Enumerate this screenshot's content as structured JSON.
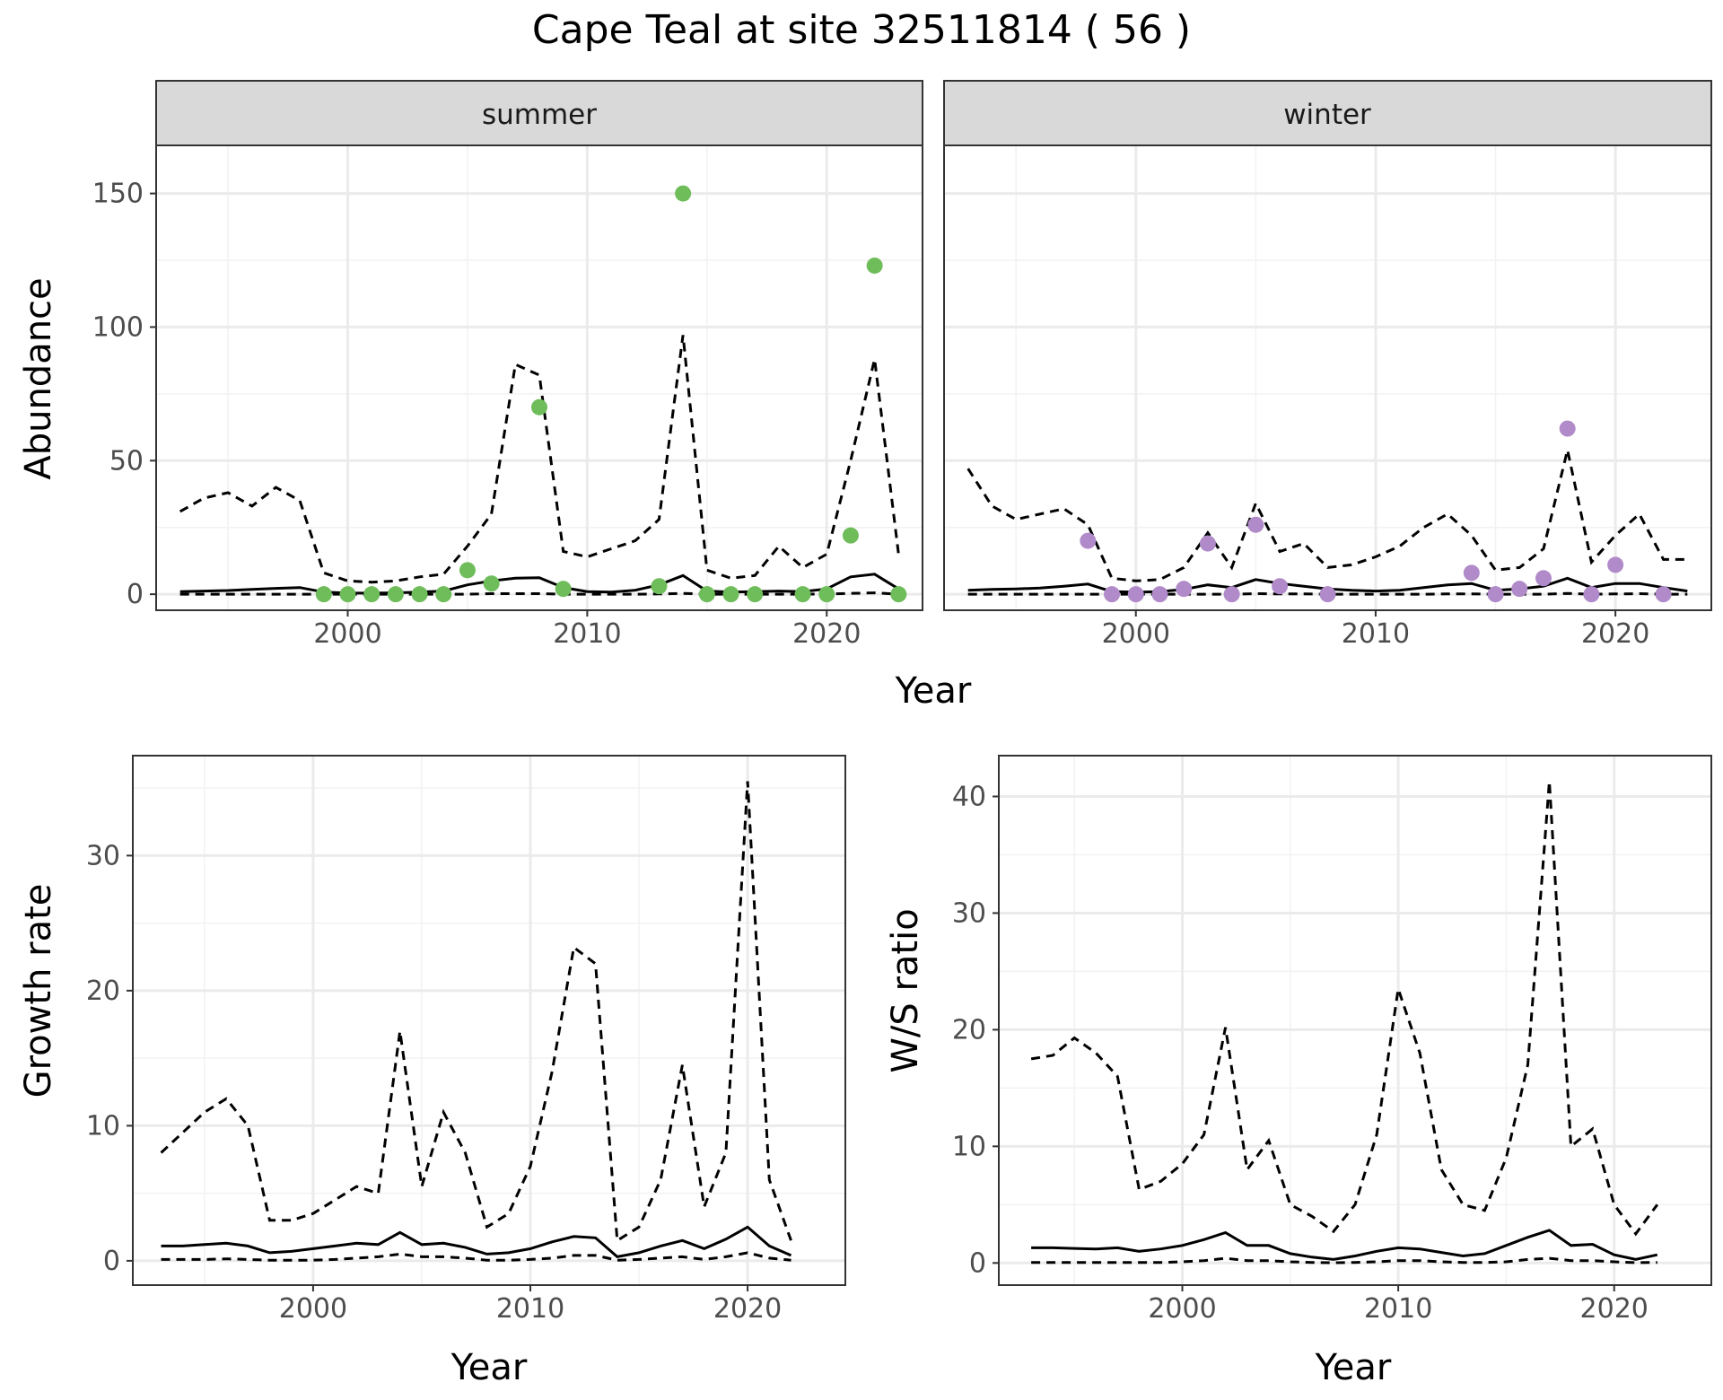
{
  "title": "Cape Teal at site 32511814 ( 56 )",
  "chart_data": [
    {
      "type": "line",
      "panel": "abundance",
      "facets": [
        "summer",
        "winter"
      ],
      "xlabel": "Year",
      "ylabel": "Abundance",
      "xlim": [
        1992,
        2024
      ],
      "ylim": [
        -6,
        168
      ],
      "xticks": [
        2000,
        2010,
        2020
      ],
      "yticks": [
        0,
        50,
        100,
        150
      ],
      "minor_xticks": [
        1995,
        2005,
        2015
      ],
      "minor_yticks": [
        25,
        75,
        125
      ],
      "grid": true,
      "colors": {
        "summer": "#6ebd5a",
        "winter": "#b08ac9",
        "line": "#000000",
        "strip_bg": "#d9d9d9"
      },
      "summer": {
        "points": {
          "x": [
            1999,
            2000,
            2001,
            2002,
            2003,
            2004,
            2005,
            2006,
            2008,
            2009,
            2013,
            2014,
            2015,
            2016,
            2017,
            2019,
            2020,
            2021,
            2022,
            2023
          ],
          "y": [
            0,
            0,
            0,
            0,
            0,
            0,
            9,
            4,
            70,
            2,
            3,
            150,
            0,
            0,
            0,
            0,
            0,
            22,
            123,
            0
          ]
        },
        "x": [
          1993,
          1994,
          1995,
          1996,
          1997,
          1998,
          1999,
          2000,
          2001,
          2002,
          2003,
          2004,
          2005,
          2006,
          2007,
          2008,
          2009,
          2010,
          2011,
          2012,
          2013,
          2014,
          2015,
          2016,
          2017,
          2018,
          2019,
          2020,
          2021,
          2022,
          2023
        ],
        "median": [
          1,
          1.2,
          1.4,
          1.8,
          2.2,
          2.5,
          0.8,
          0.4,
          0.4,
          0.5,
          0.8,
          1.2,
          3.5,
          5,
          6,
          6.2,
          2.5,
          1,
          0.8,
          1.5,
          3.5,
          7,
          1.2,
          0.8,
          1,
          1.2,
          1,
          2,
          6.5,
          7.5,
          2
        ],
        "upper": [
          31,
          36,
          38,
          33,
          40,
          35,
          8,
          5,
          4.5,
          5,
          6.5,
          7.5,
          18,
          30,
          86,
          82,
          16,
          14,
          17,
          20,
          28,
          97,
          9,
          6,
          7,
          18,
          10,
          15,
          50,
          88,
          15
        ],
        "lower": [
          0,
          0,
          0,
          0,
          0,
          0,
          0,
          0,
          0,
          0,
          0,
          0,
          0,
          0.2,
          0.2,
          0.2,
          0,
          0,
          0,
          0,
          0.1,
          0.3,
          0,
          0,
          0,
          0,
          0,
          0.1,
          0.3,
          0.5,
          0
        ]
      },
      "winter": {
        "points": {
          "x": [
            1998,
            1999,
            2000,
            2001,
            2002,
            2003,
            2004,
            2005,
            2006,
            2008,
            2014,
            2015,
            2016,
            2017,
            2018,
            2019,
            2020,
            2022
          ],
          "y": [
            20,
            0,
            0,
            0,
            2,
            19,
            0,
            26,
            3,
            0,
            8,
            0,
            2,
            6,
            62,
            0,
            11,
            0
          ]
        },
        "x": [
          1993,
          1994,
          1995,
          1996,
          1997,
          1998,
          1999,
          2000,
          2001,
          2002,
          2003,
          2004,
          2005,
          2006,
          2007,
          2008,
          2009,
          2010,
          2011,
          2012,
          2013,
          2014,
          2015,
          2016,
          2017,
          2018,
          2019,
          2020,
          2021,
          2022,
          2023
        ],
        "median": [
          1.5,
          1.8,
          2,
          2.3,
          3,
          3.8,
          1,
          0.8,
          1,
          1.8,
          3.5,
          2.5,
          5.5,
          4,
          3,
          2,
          1.5,
          1.2,
          1.5,
          2.5,
          3.5,
          4,
          1.5,
          2,
          3,
          6,
          2.5,
          4,
          4,
          2.5,
          1.2
        ],
        "upper": [
          47,
          33,
          28,
          30,
          32,
          26,
          6,
          5,
          5.5,
          10,
          23,
          10,
          34,
          16,
          19,
          10,
          11,
          14,
          18,
          25,
          30,
          22,
          9,
          10,
          17,
          54,
          12,
          22,
          30,
          13,
          13
        ],
        "lower": [
          0,
          0,
          0,
          0,
          0,
          0,
          0,
          0,
          0,
          0,
          0,
          0,
          0.2,
          0.1,
          0.1,
          0,
          0,
          0,
          0,
          0,
          0.1,
          0.1,
          0,
          0,
          0,
          0.3,
          0,
          0.1,
          0.2,
          0,
          0
        ]
      }
    },
    {
      "type": "line",
      "panel": "growth",
      "xlabel": "Year",
      "ylabel": "Growth rate",
      "xlim": [
        1991.7,
        2024.5
      ],
      "ylim": [
        -1.8,
        37.4
      ],
      "xticks": [
        2000,
        2010,
        2020
      ],
      "yticks": [
        0,
        10,
        20,
        30
      ],
      "minor_xticks": [
        1995,
        2005,
        2015
      ],
      "minor_yticks": [
        5,
        15,
        25,
        35
      ],
      "grid": true,
      "x": [
        1993,
        1994,
        1995,
        1996,
        1997,
        1998,
        1999,
        2000,
        2001,
        2002,
        2003,
        2004,
        2005,
        2006,
        2007,
        2008,
        2009,
        2010,
        2011,
        2012,
        2013,
        2014,
        2015,
        2016,
        2017,
        2018,
        2019,
        2020,
        2021,
        2022
      ],
      "median": [
        1.1,
        1.1,
        1.2,
        1.3,
        1.1,
        0.6,
        0.7,
        0.9,
        1.1,
        1.3,
        1.2,
        2.1,
        1.2,
        1.3,
        1.0,
        0.5,
        0.6,
        0.9,
        1.4,
        1.8,
        1.7,
        0.3,
        0.6,
        1.1,
        1.5,
        0.9,
        1.6,
        2.5,
        1.1,
        0.4
      ],
      "upper": [
        8,
        9.5,
        11,
        12,
        10,
        3,
        3,
        3.5,
        4.5,
        5.5,
        5,
        17,
        5.5,
        11,
        8,
        2.5,
        3.5,
        7,
        14,
        23.2,
        22,
        1.5,
        2.5,
        6,
        14.5,
        4,
        8,
        35.5,
        6,
        1.5
      ],
      "lower": [
        0.1,
        0.1,
        0.1,
        0.15,
        0.1,
        0.05,
        0.05,
        0.05,
        0.1,
        0.2,
        0.3,
        0.5,
        0.3,
        0.3,
        0.2,
        0.05,
        0.05,
        0.1,
        0.2,
        0.4,
        0.4,
        0.05,
        0.1,
        0.2,
        0.3,
        0.1,
        0.3,
        0.6,
        0.2,
        0.05
      ]
    },
    {
      "type": "line",
      "panel": "ws_ratio",
      "xlabel": "Year",
      "ylabel": "W/S ratio",
      "xlim": [
        1991.5,
        2024.5
      ],
      "ylim": [
        -1.9,
        43.5
      ],
      "xticks": [
        2000,
        2010,
        2020
      ],
      "yticks": [
        0,
        10,
        20,
        30,
        40
      ],
      "minor_xticks": [
        1995,
        2005,
        2015
      ],
      "minor_yticks": [
        5,
        15,
        25,
        35
      ],
      "grid": true,
      "x": [
        1993,
        1994,
        1995,
        1996,
        1997,
        1998,
        1999,
        2000,
        2001,
        2002,
        2003,
        2004,
        2005,
        2006,
        2007,
        2008,
        2009,
        2010,
        2011,
        2012,
        2013,
        2014,
        2015,
        2016,
        2017,
        2018,
        2019,
        2020,
        2021,
        2022
      ],
      "median": [
        1.3,
        1.3,
        1.25,
        1.2,
        1.3,
        1.0,
        1.2,
        1.5,
        2.0,
        2.6,
        1.5,
        1.5,
        0.8,
        0.5,
        0.3,
        0.6,
        1.0,
        1.3,
        1.2,
        0.9,
        0.6,
        0.8,
        1.5,
        2.2,
        2.8,
        1.5,
        1.6,
        0.7,
        0.3,
        0.7
      ],
      "upper": [
        17.5,
        17.8,
        19.3,
        18,
        16,
        6.3,
        7,
        8.5,
        11,
        20.2,
        8,
        10.5,
        5,
        4,
        2.7,
        5,
        11,
        23.5,
        18,
        8,
        5,
        4.5,
        9,
        17,
        41.3,
        10,
        11.5,
        5,
        2.5,
        5
      ],
      "lower": [
        0.05,
        0.05,
        0.05,
        0.05,
        0.05,
        0.05,
        0.05,
        0.1,
        0.2,
        0.4,
        0.2,
        0.2,
        0.1,
        0.05,
        0.02,
        0.05,
        0.1,
        0.2,
        0.2,
        0.1,
        0.05,
        0.05,
        0.1,
        0.3,
        0.4,
        0.2,
        0.2,
        0.1,
        0.02,
        0.05
      ]
    }
  ]
}
